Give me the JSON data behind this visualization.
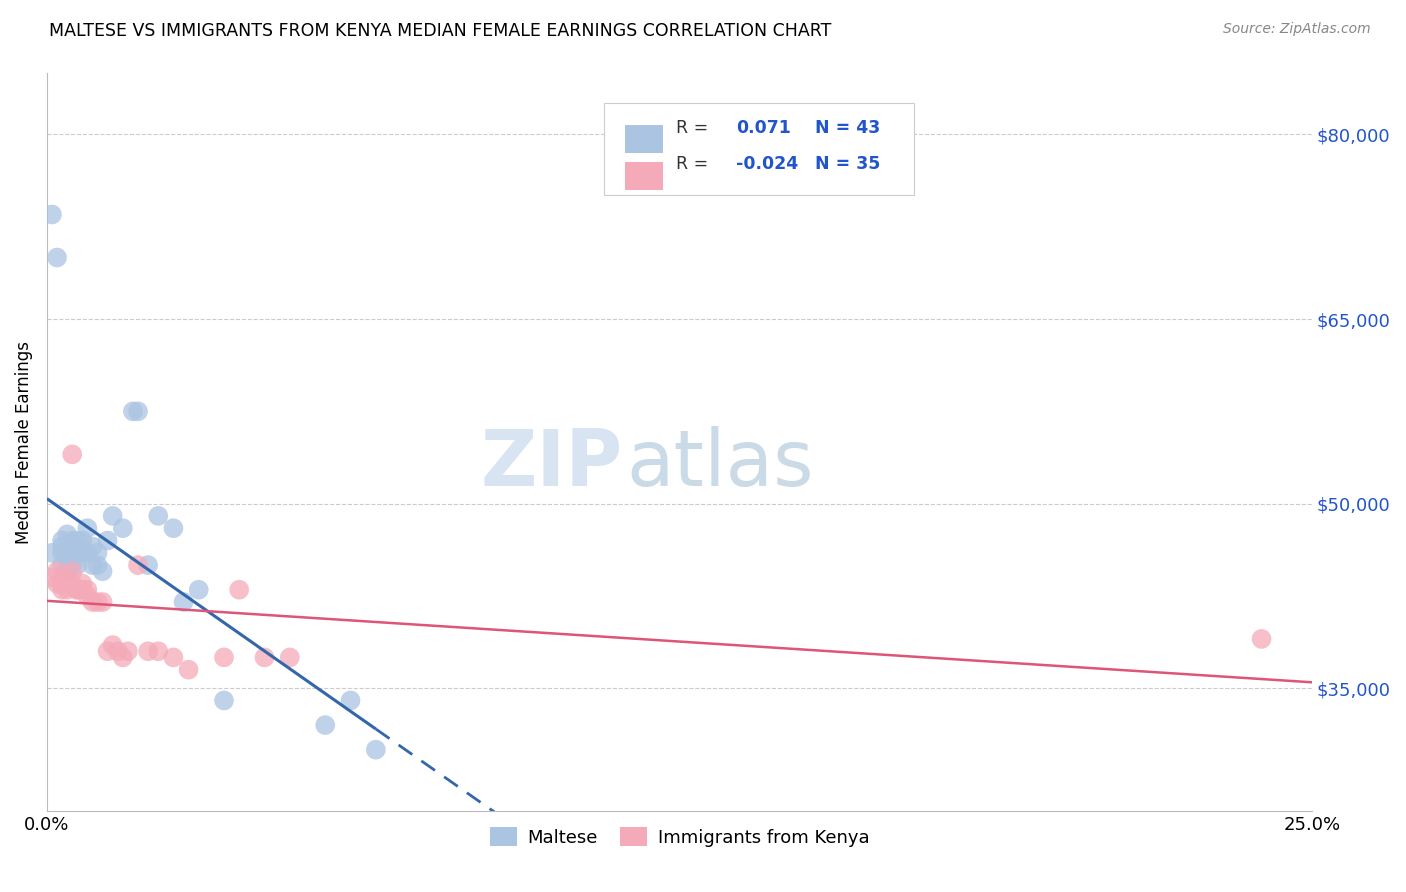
{
  "title": "MALTESE VS IMMIGRANTS FROM KENYA MEDIAN FEMALE EARNINGS CORRELATION CHART",
  "source": "Source: ZipAtlas.com",
  "ylabel": "Median Female Earnings",
  "y_ticks": [
    35000,
    50000,
    65000,
    80000
  ],
  "y_tick_labels": [
    "$35,000",
    "$50,000",
    "$65,000",
    "$80,000"
  ],
  "xlim": [
    0.0,
    0.25
  ],
  "ylim": [
    25000,
    85000
  ],
  "legend_label1": "Maltese",
  "legend_label2": "Immigrants from Kenya",
  "R1": 0.071,
  "N1": 43,
  "R2": -0.024,
  "N2": 35,
  "color_blue": "#aac4e2",
  "color_pink": "#f4aab8",
  "line_blue": "#3366aa",
  "line_pink": "#dd5577",
  "maltese_x": [
    0.001,
    0.001,
    0.002,
    0.003,
    0.003,
    0.003,
    0.003,
    0.004,
    0.004,
    0.004,
    0.004,
    0.005,
    0.005,
    0.005,
    0.005,
    0.005,
    0.006,
    0.006,
    0.006,
    0.006,
    0.007,
    0.007,
    0.008,
    0.008,
    0.009,
    0.009,
    0.01,
    0.01,
    0.011,
    0.012,
    0.013,
    0.015,
    0.017,
    0.018,
    0.02,
    0.022,
    0.025,
    0.027,
    0.03,
    0.035,
    0.055,
    0.06,
    0.065
  ],
  "maltese_y": [
    73500,
    46000,
    70000,
    47000,
    46500,
    46000,
    45000,
    47500,
    46000,
    45500,
    44500,
    47000,
    46500,
    46000,
    45500,
    45000,
    47000,
    46500,
    46000,
    45000,
    47000,
    46000,
    48000,
    46000,
    46500,
    45000,
    45000,
    46000,
    44500,
    47000,
    49000,
    48000,
    57500,
    57500,
    45000,
    49000,
    48000,
    42000,
    43000,
    34000,
    32000,
    34000,
    30000
  ],
  "kenya_x": [
    0.001,
    0.002,
    0.002,
    0.003,
    0.003,
    0.003,
    0.004,
    0.004,
    0.005,
    0.005,
    0.005,
    0.006,
    0.006,
    0.007,
    0.007,
    0.008,
    0.008,
    0.009,
    0.01,
    0.011,
    0.012,
    0.013,
    0.014,
    0.015,
    0.016,
    0.018,
    0.02,
    0.022,
    0.025,
    0.028,
    0.035,
    0.038,
    0.043,
    0.048,
    0.24
  ],
  "kenya_y": [
    44000,
    44500,
    43500,
    44000,
    43500,
    43000,
    44000,
    43000,
    54000,
    44500,
    43500,
    43000,
    43000,
    43500,
    43000,
    43000,
    42500,
    42000,
    42000,
    42000,
    38000,
    38500,
    38000,
    37500,
    38000,
    45000,
    38000,
    38000,
    37500,
    36500,
    37500,
    43000,
    37500,
    37500,
    39000
  ]
}
